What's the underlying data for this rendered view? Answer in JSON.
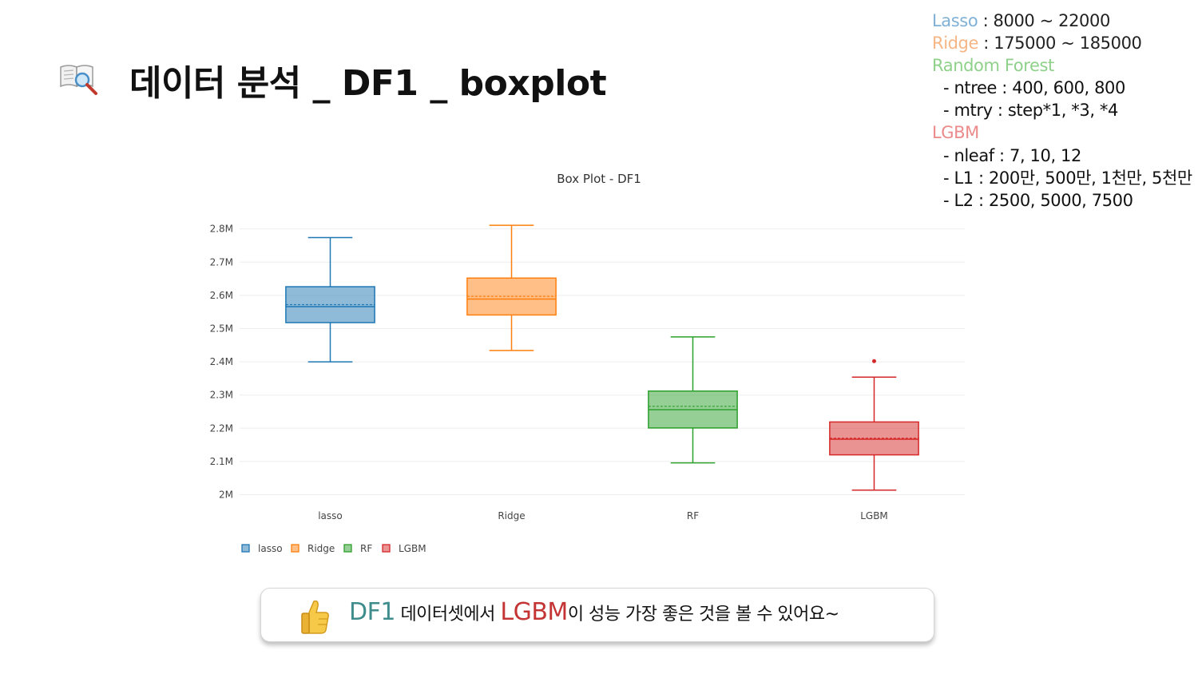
{
  "slide": {
    "title": "데이터 분석 _ DF1 _ boxplot",
    "title_icon": "book-magnifier-icon"
  },
  "params": {
    "lasso": {
      "label": "Lasso",
      "text": " : 8000 ~ 22000",
      "color": "#7fb0d6"
    },
    "ridge": {
      "label": "Ridge",
      "text": " : 175000 ~ 185000",
      "color": "#f6b584"
    },
    "rf": {
      "label": "Random Forest",
      "color": "#8fd18a",
      "items": [
        "- ntree : 400, 600, 800",
        "- mtry : step*1, *3, *4"
      ]
    },
    "lgbm": {
      "label": "LGBM",
      "color": "#eb8a8a",
      "items": [
        "- nleaf : 7, 10, 12",
        "- L1 : 200만, 500만, 1천만, 5천만",
        "- L2 : 2500, 5000, 7500"
      ]
    }
  },
  "chart_data": {
    "type": "box",
    "title": "Box Plot - DF1",
    "categories": [
      "lasso",
      "Ridge",
      "RF",
      "LGBM"
    ],
    "y_ticks": [
      2000000,
      2100000,
      2200000,
      2300000,
      2400000,
      2500000,
      2600000,
      2700000,
      2800000
    ],
    "y_tick_labels": [
      "2M",
      "2.1M",
      "2.2M",
      "2.3M",
      "2.4M",
      "2.5M",
      "2.6M",
      "2.7M",
      "2.8M"
    ],
    "ylim": [
      1970000,
      2840000
    ],
    "grid": true,
    "legend_position": "bottom-left",
    "series": [
      {
        "name": "lasso",
        "color": "#1f77b4",
        "whisker_low": 2400000,
        "q1": 2518000,
        "median": 2566000,
        "mean": 2572000,
        "q3": 2626000,
        "whisker_high": 2774000,
        "outliers": []
      },
      {
        "name": "Ridge",
        "color": "#ff7f0e",
        "whisker_low": 2434000,
        "q1": 2541000,
        "median": 2589000,
        "mean": 2597000,
        "q3": 2652000,
        "whisker_high": 2811000,
        "outliers": []
      },
      {
        "name": "RF",
        "color": "#2ca02c",
        "whisker_low": 2096000,
        "q1": 2201000,
        "median": 2256000,
        "mean": 2266000,
        "q3": 2312000,
        "whisker_high": 2475000,
        "outliers": []
      },
      {
        "name": "LGBM",
        "color": "#d62728",
        "whisker_low": 2014000,
        "q1": 2120000,
        "median": 2167000,
        "mean": 2170000,
        "q3": 2219000,
        "whisker_high": 2354000,
        "outliers": [
          2402000
        ]
      }
    ]
  },
  "callout": {
    "icon": "thumbs-up-icon",
    "prefix": "DF1",
    "prefix_color": "#3f8c8c",
    "mid": " 데이터셋에서 ",
    "highlight": "LGBM",
    "highlight_color": "#c43434",
    "suffix": "이 성능 가장 좋은 것을 볼 수 있어요~"
  }
}
